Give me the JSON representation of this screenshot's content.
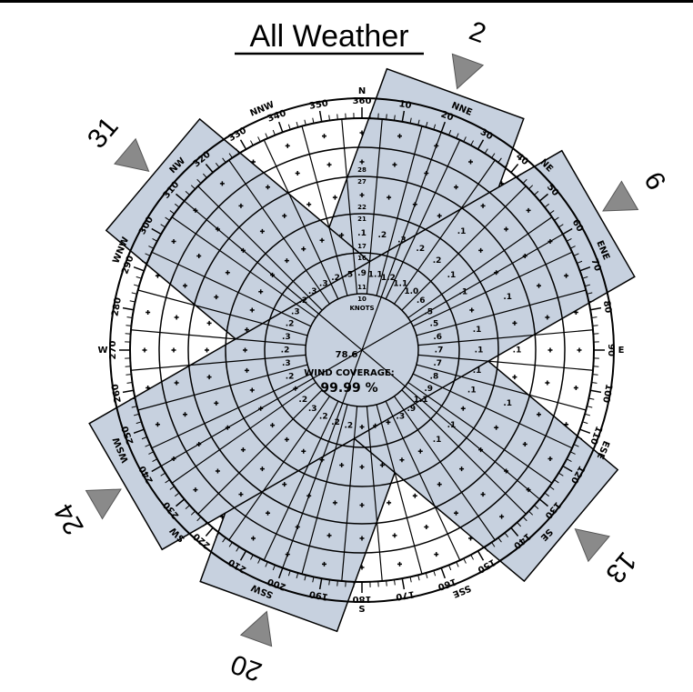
{
  "title": "All Weather",
  "colors": {
    "runway_fill": "#c7d1df",
    "arrow_fill": "#8a8a8a",
    "line": "#000000"
  },
  "center": {
    "value": "78.6",
    "caption": "WIND COVERAGE:",
    "coverage": "99.99 %"
  },
  "knots_label": "KNOTS",
  "ring_speed_labels": [
    "10",
    "11",
    "16",
    "17",
    "21",
    "22",
    "27",
    "28"
  ],
  "cardinals": [
    {
      "label": "N",
      "angle": 0
    },
    {
      "label": "E",
      "angle": 90
    },
    {
      "label": "S",
      "angle": 180
    },
    {
      "label": "W",
      "angle": 270
    }
  ],
  "intercardinals": [
    {
      "label": "NNE",
      "angle": 22.5
    },
    {
      "label": "NE",
      "angle": 45
    },
    {
      "label": "ENE",
      "angle": 67.5
    },
    {
      "label": "ESE",
      "angle": 112.5
    },
    {
      "label": "SE",
      "angle": 135
    },
    {
      "label": "SSE",
      "angle": 157.5
    },
    {
      "label": "SSW",
      "angle": 202.5
    },
    {
      "label": "SW",
      "angle": 225
    },
    {
      "label": "WSW",
      "angle": 247.5
    },
    {
      "label": "WNW",
      "angle": 292.5
    },
    {
      "label": "NW",
      "angle": 315
    },
    {
      "label": "NNW",
      "angle": 337.5
    }
  ],
  "degree_labels": [
    "10",
    "20",
    "30",
    "40",
    "50",
    "60",
    "70",
    "80",
    "90",
    "100",
    "110",
    "120",
    "130",
    "140",
    "150",
    "160",
    "170",
    "180",
    "190",
    "200",
    "210",
    "220",
    "230",
    "240",
    "250",
    "260",
    "270",
    "280",
    "290",
    "300",
    "310",
    "320",
    "330",
    "340",
    "350",
    "360"
  ],
  "runways": [
    {
      "heading": 200,
      "end_a": "20",
      "end_b": "2"
    },
    {
      "heading": 310,
      "end_a": "31",
      "end_b": "13"
    },
    {
      "heading": 240,
      "end_a": "24",
      "end_b": "6"
    }
  ],
  "sector_values": [
    {
      "ring": 1,
      "dir": 350,
      "text": ".5"
    },
    {
      "ring": 1,
      "dir": 0,
      "text": ".9"
    },
    {
      "ring": 1,
      "dir": 10,
      "text": "1.1"
    },
    {
      "ring": 1,
      "dir": 20,
      "text": "1.2"
    },
    {
      "ring": 1,
      "dir": 30,
      "text": "1.1"
    },
    {
      "ring": 1,
      "dir": 40,
      "text": "1.0"
    },
    {
      "ring": 1,
      "dir": 50,
      "text": ".6"
    },
    {
      "ring": 1,
      "dir": 60,
      "text": ".5"
    },
    {
      "ring": 1,
      "dir": 70,
      "text": ".5"
    },
    {
      "ring": 1,
      "dir": 80,
      "text": ".6"
    },
    {
      "ring": 1,
      "dir": 90,
      "text": ".7"
    },
    {
      "ring": 1,
      "dir": 100,
      "text": ".7"
    },
    {
      "ring": 1,
      "dir": 110,
      "text": ".8"
    },
    {
      "ring": 1,
      "dir": 120,
      "text": ".9"
    },
    {
      "ring": 1,
      "dir": 130,
      "text": "1.1"
    },
    {
      "ring": 1,
      "dir": 140,
      "text": ".9"
    },
    {
      "ring": 1,
      "dir": 150,
      "text": ".3"
    },
    {
      "ring": 1,
      "dir": 190,
      "text": ".2"
    },
    {
      "ring": 1,
      "dir": 200,
      "text": ".2"
    },
    {
      "ring": 1,
      "dir": 210,
      "text": ".2"
    },
    {
      "ring": 1,
      "dir": 220,
      "text": ".3"
    },
    {
      "ring": 1,
      "dir": 230,
      "text": ".2"
    },
    {
      "ring": 1,
      "dir": 250,
      "text": ".2"
    },
    {
      "ring": 1,
      "dir": 260,
      "text": ".3"
    },
    {
      "ring": 1,
      "dir": 270,
      "text": ".2"
    },
    {
      "ring": 1,
      "dir": 280,
      "text": ".3"
    },
    {
      "ring": 1,
      "dir": 290,
      "text": ".2"
    },
    {
      "ring": 1,
      "dir": 300,
      "text": ".3"
    },
    {
      "ring": 1,
      "dir": 310,
      "text": ".2"
    },
    {
      "ring": 1,
      "dir": 320,
      "text": ".3"
    },
    {
      "ring": 1,
      "dir": 330,
      "text": ".3"
    },
    {
      "ring": 1,
      "dir": 340,
      "text": ".2"
    },
    {
      "ring": 2,
      "dir": 0,
      "text": ".1"
    },
    {
      "ring": 2,
      "dir": 10,
      "text": ".2"
    },
    {
      "ring": 2,
      "dir": 20,
      "text": ".3"
    },
    {
      "ring": 2,
      "dir": 30,
      "text": ".2"
    },
    {
      "ring": 2,
      "dir": 40,
      "text": ".2"
    },
    {
      "ring": 2,
      "dir": 50,
      "text": ".1"
    },
    {
      "ring": 2,
      "dir": 60,
      "text": ".1"
    },
    {
      "ring": 2,
      "dir": 80,
      "text": ".1"
    },
    {
      "ring": 2,
      "dir": 90,
      "text": ".1"
    },
    {
      "ring": 2,
      "dir": 100,
      "text": ".1"
    },
    {
      "ring": 2,
      "dir": 110,
      "text": ".1"
    },
    {
      "ring": 2,
      "dir": 130,
      "text": ".1"
    },
    {
      "ring": 2,
      "dir": 140,
      "text": ".1"
    },
    {
      "ring": 3,
      "dir": 40,
      "text": ".1"
    },
    {
      "ring": 3,
      "dir": 70,
      "text": ".1"
    },
    {
      "ring": 3,
      "dir": 90,
      "text": ".1"
    },
    {
      "ring": 3,
      "dir": 110,
      "text": ".1"
    }
  ]
}
